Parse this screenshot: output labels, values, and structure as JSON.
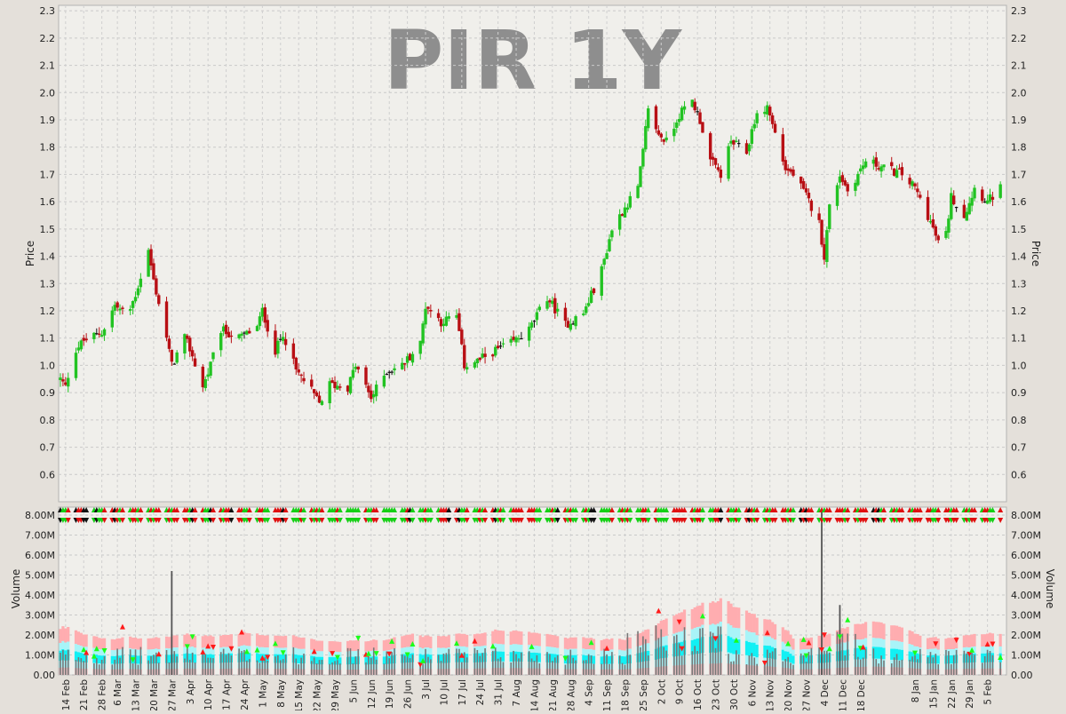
{
  "chart_data": [
    {
      "type": "candlestick",
      "panel": "price",
      "title": "PIR 1Y",
      "ylabel": "Price",
      "ylim": [
        0.5,
        2.32
      ],
      "yticks": [
        "0.6",
        "0.7",
        "0.8",
        "0.9",
        "1.0",
        "1.1",
        "1.2",
        "1.3",
        "1.4",
        "1.5",
        "1.6",
        "1.7",
        "1.8",
        "1.9",
        "2.0",
        "2.1",
        "2.2",
        "2.3"
      ],
      "grid": true,
      "approximate_close_path": [
        {
          "x": "12 Feb",
          "y": 0.95
        },
        {
          "x": "14 Feb",
          "y": 0.92
        },
        {
          "x": "17 Feb",
          "y": 1.05
        },
        {
          "x": "21 Feb",
          "y": 1.09
        },
        {
          "x": "28 Feb",
          "y": 1.12
        },
        {
          "x": "5 Mar",
          "y": 1.22
        },
        {
          "x": "10 Mar",
          "y": 1.18
        },
        {
          "x": "13 Mar",
          "y": 1.26
        },
        {
          "x": "18 Mar",
          "y": 1.42
        },
        {
          "x": "20 Mar",
          "y": 1.31
        },
        {
          "x": "24 Mar",
          "y": 1.15
        },
        {
          "x": "27 Mar",
          "y": 1.0
        },
        {
          "x": "1 Apr",
          "y": 1.1
        },
        {
          "x": "3 Apr",
          "y": 1.06
        },
        {
          "x": "8 Apr",
          "y": 0.92
        },
        {
          "x": "11 Apr",
          "y": 1.0
        },
        {
          "x": "15 Apr",
          "y": 1.13
        },
        {
          "x": "22 Apr",
          "y": 1.1
        },
        {
          "x": "29 Apr",
          "y": 1.14
        },
        {
          "x": "1 May",
          "y": 1.2
        },
        {
          "x": "6 May",
          "y": 1.05
        },
        {
          "x": "9 May",
          "y": 1.12
        },
        {
          "x": "14 May",
          "y": 0.98
        },
        {
          "x": "19 May",
          "y": 0.92
        },
        {
          "x": "23 May",
          "y": 0.86
        },
        {
          "x": "27 May",
          "y": 0.93
        },
        {
          "x": "3 Jun",
          "y": 0.92
        },
        {
          "x": "6 Jun",
          "y": 1.0
        },
        {
          "x": "12 Jun",
          "y": 0.88
        },
        {
          "x": "18 Jun",
          "y": 0.98
        },
        {
          "x": "24 Jun",
          "y": 1.0
        },
        {
          "x": "1 Jul",
          "y": 1.08
        },
        {
          "x": "3 Jul",
          "y": 1.22
        },
        {
          "x": "9 Jul",
          "y": 1.16
        },
        {
          "x": "15 Jul",
          "y": 1.18
        },
        {
          "x": "18 Jul",
          "y": 1.0
        },
        {
          "x": "24 Jul",
          "y": 1.02
        },
        {
          "x": "29 Jul",
          "y": 1.05
        },
        {
          "x": "5 Aug",
          "y": 1.08
        },
        {
          "x": "12 Aug",
          "y": 1.13
        },
        {
          "x": "19 Aug",
          "y": 1.25
        },
        {
          "x": "26 Aug",
          "y": 1.15
        },
        {
          "x": "2 Sep",
          "y": 1.19
        },
        {
          "x": "9 Sep",
          "y": 1.35
        },
        {
          "x": "13 Sep",
          "y": 1.5
        },
        {
          "x": "18 Sep",
          "y": 1.58
        },
        {
          "x": "23 Sep",
          "y": 1.65
        },
        {
          "x": "25 Sep",
          "y": 1.78
        },
        {
          "x": "27 Sep",
          "y": 1.95
        },
        {
          "x": "30 Sep",
          "y": 1.86
        },
        {
          "x": "4 Oct",
          "y": 1.82
        },
        {
          "x": "9 Oct",
          "y": 1.92
        },
        {
          "x": "14 Oct",
          "y": 1.97
        },
        {
          "x": "17 Oct",
          "y": 1.9
        },
        {
          "x": "21 Oct",
          "y": 1.75
        },
        {
          "x": "25 Oct",
          "y": 1.7
        },
        {
          "x": "29 Oct",
          "y": 1.82
        },
        {
          "x": "4 Nov",
          "y": 1.78
        },
        {
          "x": "7 Nov",
          "y": 1.9
        },
        {
          "x": "12 Nov",
          "y": 1.95
        },
        {
          "x": "15 Nov",
          "y": 1.85
        },
        {
          "x": "19 Nov",
          "y": 1.72
        },
        {
          "x": "22 Nov",
          "y": 1.7
        },
        {
          "x": "27 Nov",
          "y": 1.62
        },
        {
          "x": "2 Dec",
          "y": 1.52
        },
        {
          "x": "4 Dec",
          "y": 1.4
        },
        {
          "x": "6 Dec",
          "y": 1.58
        },
        {
          "x": "10 Dec",
          "y": 1.7
        },
        {
          "x": "13 Dec",
          "y": 1.64
        },
        {
          "x": "17 Dec",
          "y": 1.7
        },
        {
          "x": "20 Dec",
          "y": 1.75
        },
        {
          "x": "3 Jan",
          "y": 1.7
        },
        {
          "x": "8 Jan",
          "y": 1.65
        },
        {
          "x": "13 Jan",
          "y": 1.55
        },
        {
          "x": "17 Jan",
          "y": 1.45
        },
        {
          "x": "20 Jan",
          "y": 1.48
        },
        {
          "x": "22 Jan",
          "y": 1.62
        },
        {
          "x": "27 Jan",
          "y": 1.55
        },
        {
          "x": "31 Jan",
          "y": 1.65
        },
        {
          "x": "5 Feb",
          "y": 1.6
        },
        {
          "x": "10 Feb",
          "y": 1.65
        }
      ],
      "colors": {
        "up": "#22c322",
        "down": "#b80f14",
        "flat": "#111111"
      }
    },
    {
      "type": "bar",
      "panel": "volume",
      "ylabel": "Volume",
      "ylim": [
        0,
        8400000
      ],
      "yticks": [
        "0.00",
        "1.00M",
        "2.00M",
        "3.00M",
        "4.00M",
        "5.00M",
        "6.00M",
        "7.00M",
        "8.00M"
      ],
      "x_tick_labels": [
        "14 Feb",
        "21 Feb",
        "28 Feb",
        "6 Mar",
        "13 Mar",
        "20 Mar",
        "27 Mar",
        "3 Apr",
        "10 Apr",
        "17 Apr",
        "24 Apr",
        "1 May",
        "8 May",
        "15 May",
        "22 May",
        "29 May",
        "5 Jun",
        "12 Jun",
        "19 Jun",
        "26 Jun",
        "3 Jul",
        "10 Jul",
        "17 Jul",
        "24 Jul",
        "31 Jul",
        "7 Aug",
        "14 Aug",
        "21 Aug",
        "28 Aug",
        "4 Sep",
        "11 Sep",
        "18 Sep",
        "25 Sep",
        "2 Oct",
        "9 Oct",
        "16 Oct",
        "23 Oct",
        "30 Oct",
        "6 Nov",
        "13 Nov",
        "20 Nov",
        "27 Nov",
        "4 Dec",
        "11 Dec",
        "18 Dec",
        "8 Jan",
        "15 Jan",
        "22 Jan",
        "29 Jan",
        "5 Feb"
      ],
      "volume_peaks": [
        {
          "x": "27 Mar",
          "y": 5200000
        },
        {
          "x": "3 Dec",
          "y": 8200000
        },
        {
          "x": "10 Dec",
          "y": 3500000
        }
      ],
      "colors": {
        "volume": "#777777",
        "band_outer": "#ffadb0",
        "band_mid": "#a8f4f8",
        "band_inner": "#12f0f4",
        "band_low": "#e7c1c3"
      }
    }
  ]
}
